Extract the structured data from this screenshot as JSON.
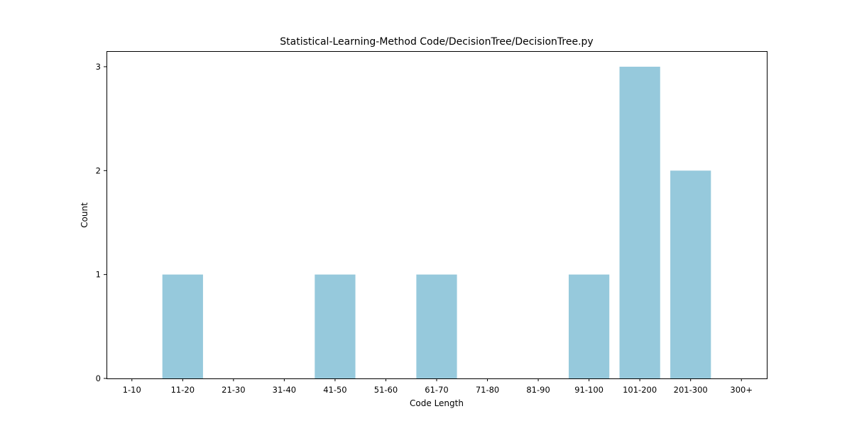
{
  "chart_data": {
    "type": "bar",
    "title": "Statistical-Learning-Method Code/DecisionTree/DecisionTree.py",
    "xlabel": "Code Length",
    "ylabel": "Count",
    "categories": [
      "1-10",
      "11-20",
      "21-30",
      "31-40",
      "41-50",
      "51-60",
      "61-70",
      "71-80",
      "81-90",
      "91-100",
      "101-200",
      "201-300",
      "300+"
    ],
    "values": [
      0,
      1,
      0,
      0,
      1,
      0,
      1,
      0,
      0,
      1,
      3,
      2,
      0
    ],
    "ylim": [
      0,
      3.15
    ],
    "yticks": [
      0,
      1,
      2,
      3
    ],
    "grid": false,
    "colors": {
      "bar": "#96c9dc"
    }
  }
}
